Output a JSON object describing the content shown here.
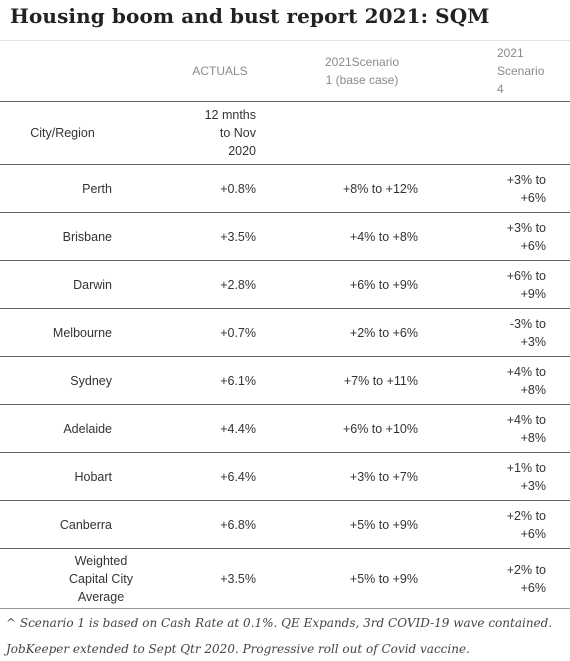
{
  "title": "Housing boom and bust report 2021: SQM",
  "header": {
    "actuals": "ACTUALS",
    "scenario1": "2021Scenario 1 (base case)",
    "scenario4": "2021 Scenario 4"
  },
  "subheader": {
    "city_region": "City/Region",
    "period": "12 mnths to Nov 2020"
  },
  "rows": [
    {
      "city": "Perth",
      "actual": "+0.8%",
      "scenario1": "+8% to +12%",
      "scenario4": "+3% to +6%"
    },
    {
      "city": "Brisbane",
      "actual": "+3.5%",
      "scenario1": "+4% to +8%",
      "scenario4": "+3% to +6%"
    },
    {
      "city": "Darwin",
      "actual": "+2.8%",
      "scenario1": "+6% to +9%",
      "scenario4": "+6% to +9%"
    },
    {
      "city": "Melbourne",
      "actual": "+0.7%",
      "scenario1": "+2% to +6%",
      "scenario4": "-3% to +3%"
    },
    {
      "city": "Sydney",
      "actual": "+6.1%",
      "scenario1": "+7% to +11%",
      "scenario4": "+4% to +8%"
    },
    {
      "city": "Adelaide",
      "actual": "+4.4%",
      "scenario1": "+6% to +10%",
      "scenario4": "+4% to +8%"
    },
    {
      "city": "Hobart",
      "actual": "+6.4%",
      "scenario1": "+3% to +7%",
      "scenario4": "+1% to +3%"
    },
    {
      "city": "Canberra",
      "actual": "+6.8%",
      "scenario1": "+5% to +9%",
      "scenario4": "+2% to +6%"
    },
    {
      "city": "Weighted Capital City Average",
      "actual": "+3.5%",
      "scenario1": "+5% to +9%",
      "scenario4": "+2% to +6%"
    }
  ],
  "notes": [
    "^ Scenario 1 is based on Cash Rate at 0.1%. QE Expands, 3rd COVID-19 wave contained.",
    "JobKeeper extended to Sept Qtr 2020. Progressive roll out of Covid vaccine."
  ]
}
